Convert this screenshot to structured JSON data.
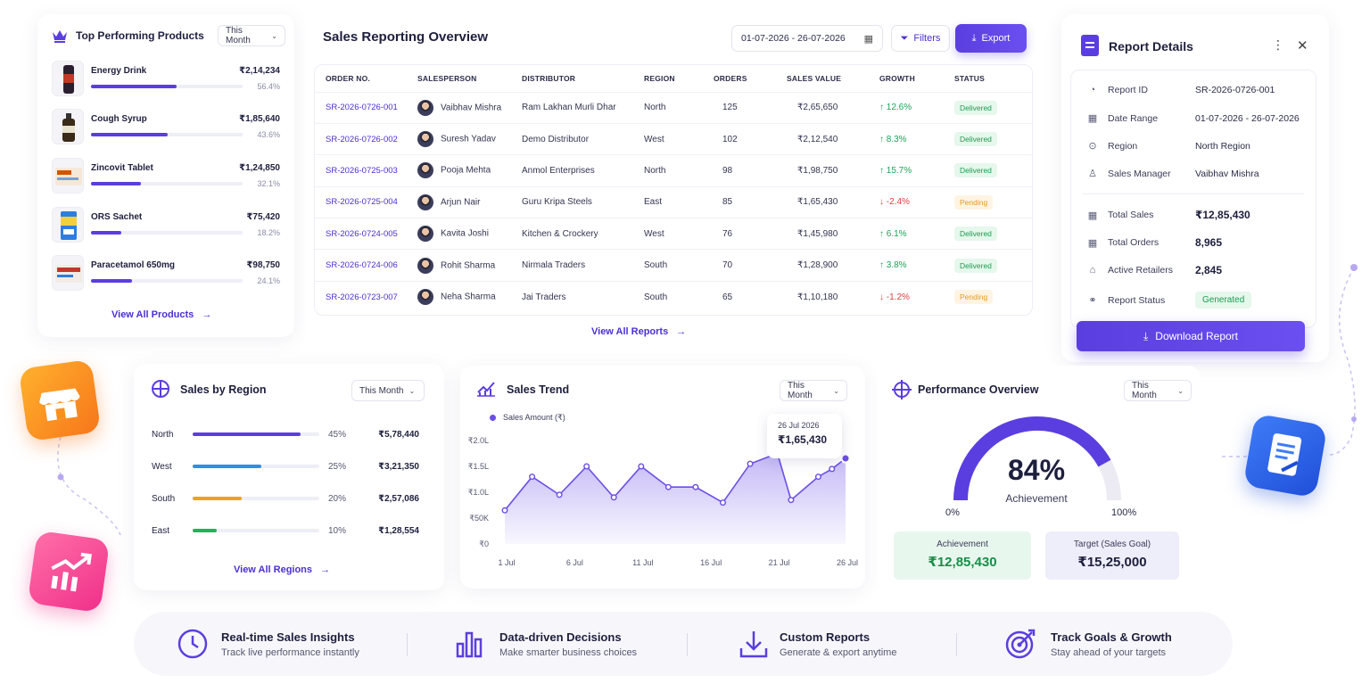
{
  "top_products": {
    "title": "Top Performing Products",
    "period": "This Month",
    "items": [
      {
        "name": "Energy Drink",
        "value": "₹2,14,234",
        "percent": "56.4%",
        "share": 0.564
      },
      {
        "name": "Cough Syrup",
        "value": "₹1,85,640",
        "percent": "43.6%",
        "share": 0.436
      },
      {
        "name": "Zincovit Tablet",
        "value": "₹1,24,850",
        "percent": "32.1%",
        "share": 0.321
      },
      {
        "name": "ORS Sachet",
        "value": "₹75,420",
        "percent": "18.2%",
        "share": 0.182
      },
      {
        "name": "Paracetamol 650mg",
        "value": "₹98,750",
        "percent": "24.1%",
        "share": 0.241
      }
    ],
    "view_all": "View All Products"
  },
  "sales_report": {
    "title": "Sales Reporting Overview",
    "date_range": "01-07-2026 - 26-07-2026",
    "filters_label": "Filters",
    "export_label": "Export",
    "columns": [
      "ORDER NO.",
      "SALESPERSON",
      "DISTRIBUTOR",
      "REGION",
      "ORDERS",
      "SALES VALUE",
      "GROWTH",
      "STATUS"
    ],
    "rows": [
      {
        "order": "SR-2026-0726-001",
        "salesperson": "Vaibhav Mishra",
        "distributor": "Ram Lakhan Murli Dhar",
        "region": "North",
        "orders": "125",
        "value": "₹2,65,650",
        "growth": "↑ 12.6%",
        "trend": "up",
        "status": "Delivered"
      },
      {
        "order": "SR-2026-0726-002",
        "salesperson": "Suresh Yadav",
        "distributor": "Demo Distributor",
        "region": "West",
        "orders": "102",
        "value": "₹2,12,540",
        "growth": "↑ 8.3%",
        "trend": "up",
        "status": "Delivered"
      },
      {
        "order": "SR-2026-0725-003",
        "salesperson": "Pooja Mehta",
        "distributor": "Anmol Enterprises",
        "region": "North",
        "orders": "98",
        "value": "₹1,98,750",
        "growth": "↑ 15.7%",
        "trend": "up",
        "status": "Delivered"
      },
      {
        "order": "SR-2026-0725-004",
        "salesperson": "Arjun Nair",
        "distributor": "Guru Kripa Steels",
        "region": "East",
        "orders": "85",
        "value": "₹1,65,430",
        "growth": "↓ -2.4%",
        "trend": "down",
        "status": "Pending"
      },
      {
        "order": "SR-2026-0724-005",
        "salesperson": "Kavita Joshi",
        "distributor": "Kitchen & Crockery",
        "region": "West",
        "orders": "76",
        "value": "₹1,45,980",
        "growth": "↑ 6.1%",
        "trend": "up",
        "status": "Delivered"
      },
      {
        "order": "SR-2026-0724-006",
        "salesperson": "Rohit Sharma",
        "distributor": "Nirmala Traders",
        "region": "South",
        "orders": "70",
        "value": "₹1,28,900",
        "growth": "↑ 3.8%",
        "trend": "up",
        "status": "Delivered"
      },
      {
        "order": "SR-2026-0723-007",
        "salesperson": "Neha Sharma",
        "distributor": "Jai Traders",
        "region": "South",
        "orders": "65",
        "value": "₹1,10,180",
        "growth": "↓ -1.2%",
        "trend": "down",
        "status": "Pending"
      }
    ],
    "view_all": "View All Reports"
  },
  "report_details": {
    "title": "Report Details",
    "fields": [
      {
        "label": "Report ID",
        "value": "SR-2026-0726-001"
      },
      {
        "label": "Date Range",
        "value": "01-07-2026 - 26-07-2026"
      },
      {
        "label": "Region",
        "value": "North Region"
      },
      {
        "label": "Sales Manager",
        "value": "Vaibhav Mishra"
      }
    ],
    "stats": [
      {
        "label": "Total Sales",
        "value": "₹12,85,430"
      },
      {
        "label": "Total Orders",
        "value": "8,965"
      },
      {
        "label": "Active Retailers",
        "value": "2,845"
      },
      {
        "label": "Report Status",
        "value": "Generated"
      }
    ],
    "download_label": "Download Report"
  },
  "sales_by_region": {
    "title": "Sales by Region",
    "period": "This Month",
    "items": [
      {
        "name": "North",
        "percent": "45%",
        "value": "₹5,78,440",
        "share": 0.45,
        "color": "#5b3ee0"
      },
      {
        "name": "West",
        "percent": "25%",
        "value": "₹3,21,350",
        "share": 0.25,
        "color": "#2f8fe0"
      },
      {
        "name": "South",
        "percent": "20%",
        "value": "₹2,57,086",
        "share": 0.2,
        "color": "#f0a020"
      },
      {
        "name": "East",
        "percent": "10%",
        "value": "₹1,28,554",
        "share": 0.1,
        "color": "#22b25a"
      }
    ],
    "view_all": "View All Regions"
  },
  "sales_trend": {
    "title": "Sales Trend",
    "period": "This Month",
    "tooltip_date": "26 Jul 2026",
    "tooltip_value": "₹1,65,430"
  },
  "chart_data": {
    "type": "area",
    "title": "Sales Trend",
    "series": [
      {
        "name": "Sales Amount (₹)",
        "values": [
          65000,
          130000,
          95000,
          150000,
          90000,
          150000,
          110000,
          110000,
          80000,
          155000,
          175000,
          85000,
          130000,
          145000,
          165430
        ]
      }
    ],
    "x": [
      1,
      3,
      5,
      7,
      9,
      11,
      13,
      15,
      17,
      19,
      21,
      22,
      24,
      25,
      26
    ],
    "xticks": [
      "1 Jul",
      "6 Jul",
      "11 Jul",
      "16 Jul",
      "21 Jul",
      "26 Jul"
    ],
    "xtick_values": [
      1,
      6,
      11,
      16,
      21,
      26
    ],
    "yticks": [
      "₹0",
      "₹50K",
      "₹1.0L",
      "₹1.5L",
      "₹2.0L"
    ],
    "ytick_values": [
      0,
      50000,
      100000,
      150000,
      200000
    ],
    "ylim": [
      0,
      200000
    ],
    "xlim": [
      1,
      26
    ],
    "color": "#6b4ee6"
  },
  "performance": {
    "title": "Performance Overview",
    "period": "This Month",
    "achievement_pct": "84%",
    "achievement_label": "Achievement",
    "achievement_fraction": 0.84,
    "min_label": "0%",
    "max_label": "100%",
    "achievement_box_label": "Achievement",
    "achievement_value": "₹12,85,430",
    "target_label": "Target (Sales Goal)",
    "target_value": "₹15,25,000"
  },
  "features": [
    {
      "title": "Real-time Sales Insights",
      "subtitle": "Track live performance instantly"
    },
    {
      "title": "Data-driven Decisions",
      "subtitle": "Make smarter business choices"
    },
    {
      "title": "Custom Reports",
      "subtitle": "Generate & export anytime"
    },
    {
      "title": "Track Goals & Growth",
      "subtitle": "Stay ahead of your targets"
    }
  ],
  "colors": {
    "primary": "#5b3ee0",
    "success": "#1aa35a",
    "danger": "#e03d3d",
    "warning": "#e79a27"
  }
}
